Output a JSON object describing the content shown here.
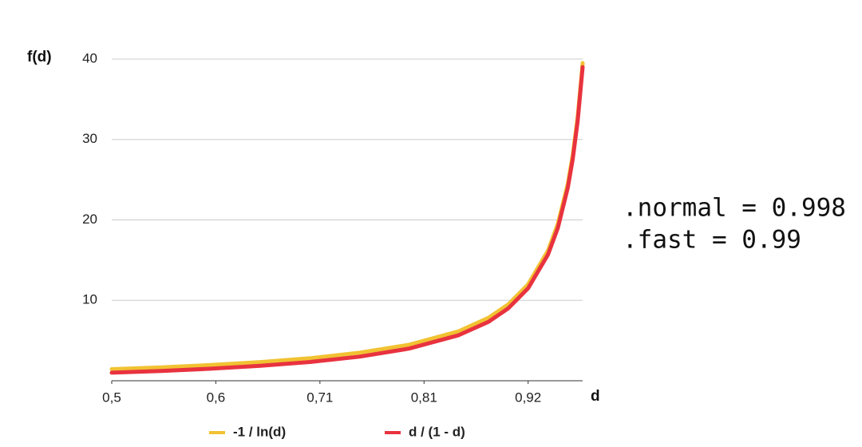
{
  "chart_data": {
    "type": "line",
    "y_label": "f(d)",
    "x_label": "d",
    "annotations": [
      ".normal = 0.998",
      ".fast = 0.99"
    ],
    "x": [
      0.5,
      0.55,
      0.6,
      0.65,
      0.7,
      0.75,
      0.8,
      0.85,
      0.88,
      0.9,
      0.92,
      0.94,
      0.95,
      0.96,
      0.965,
      0.97,
      0.975
    ],
    "series": [
      {
        "name": "-1 / ln(d)",
        "color": "#f1c232",
        "values": [
          1.44,
          1.67,
          1.96,
          2.32,
          2.8,
          3.48,
          4.48,
          6.15,
          7.82,
          9.49,
          11.99,
          16.16,
          19.5,
          24.5,
          28.07,
          32.83,
          39.5
        ]
      },
      {
        "name": "d / (1 - d)",
        "color": "#e8333f",
        "values": [
          1,
          1.22,
          1.5,
          1.86,
          2.33,
          3,
          4,
          5.67,
          7.33,
          9,
          11.5,
          15.67,
          19,
          24,
          27.57,
          32.33,
          39
        ]
      }
    ],
    "xlim": [
      0.5,
      0.975
    ],
    "xticks": [
      {
        "value": 0.5,
        "label": "0,5"
      },
      {
        "value": 0.605,
        "label": "0,6"
      },
      {
        "value": 0.71,
        "label": "0,71"
      },
      {
        "value": 0.815,
        "label": "0,81"
      },
      {
        "value": 0.92,
        "label": "0,92"
      }
    ],
    "ylim": [
      0,
      40
    ],
    "yticks": [
      10,
      20,
      30,
      40
    ],
    "grid": true
  }
}
